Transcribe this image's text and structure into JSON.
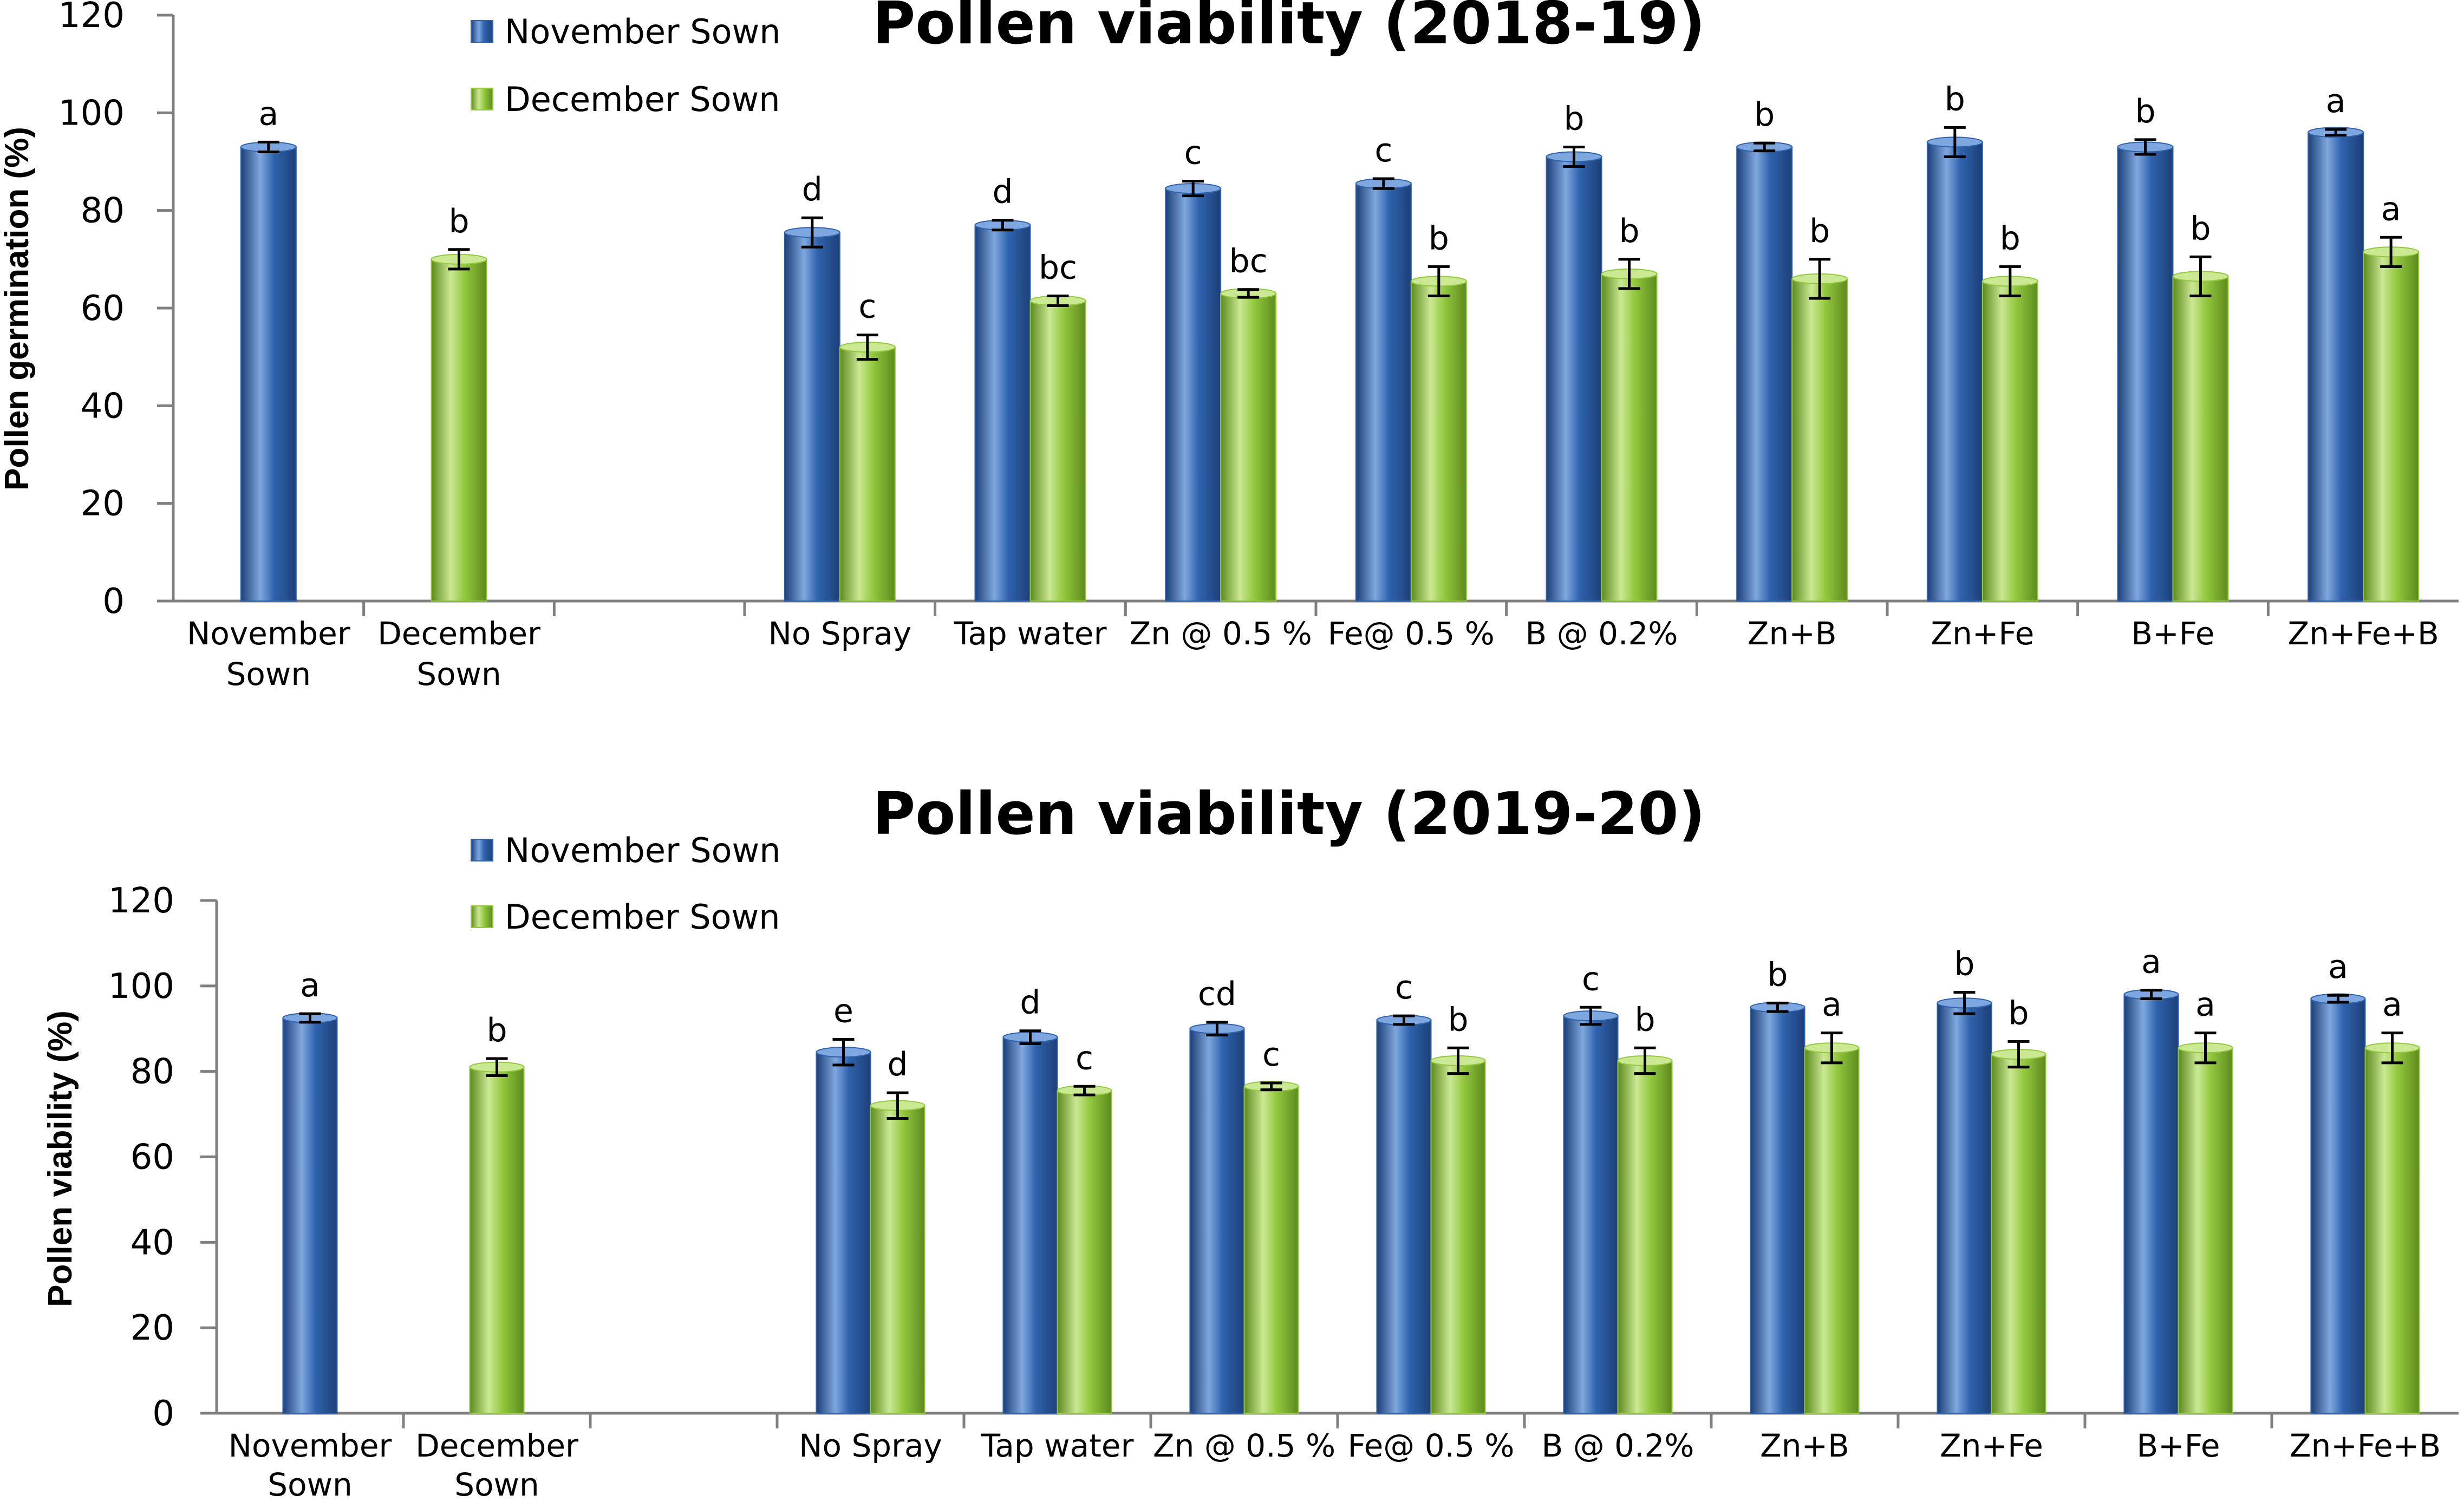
{
  "colors": {
    "november": "#2f63ad",
    "november_light": "#7fa7df",
    "november_dark": "#1d3f78",
    "december": "#93c83e",
    "december_light": "#cbe893",
    "december_dark": "#5d8a1e",
    "axis": "#7f7f7f"
  },
  "chart_data": [
    {
      "type": "bar",
      "title": "Pollen viability (2018-19)",
      "ylabel": "Pollen  germination (%)",
      "xlabel": "",
      "ylim": [
        0,
        120
      ],
      "yticks": [
        0,
        20,
        40,
        60,
        80,
        100,
        120
      ],
      "categories": [
        [
          "November",
          "Sown"
        ],
        [
          "December",
          "Sown"
        ],
        [
          ""
        ],
        [
          "No Spray"
        ],
        [
          "Tap water"
        ],
        [
          "Zn @ 0.5 %"
        ],
        [
          "Fe@ 0.5 %"
        ],
        [
          "B @ 0.2%"
        ],
        [
          "Zn+B"
        ],
        [
          "Zn+Fe"
        ],
        [
          "B+Fe"
        ],
        [
          "Zn+Fe+B"
        ]
      ],
      "series": [
        {
          "name": "November Sown",
          "values": [
            93,
            null,
            null,
            75.5,
            77,
            84.5,
            85.5,
            91,
            93,
            94,
            93,
            96
          ],
          "errors": [
            1,
            null,
            null,
            3,
            1,
            1.5,
            1,
            2,
            0.8,
            3,
            1.5,
            0.6
          ],
          "labels": [
            "a",
            "",
            "",
            "d",
            "d",
            "c",
            "c",
            "b",
            "b",
            "b",
            "b",
            "a"
          ]
        },
        {
          "name": "December Sown",
          "values": [
            null,
            70,
            null,
            52,
            61.5,
            63,
            65.5,
            67,
            66,
            65.5,
            66.5,
            71.5
          ],
          "errors": [
            null,
            2,
            null,
            2.5,
            1,
            0.8,
            3,
            3,
            4,
            3,
            4,
            3
          ],
          "labels": [
            "",
            "b",
            "",
            "c",
            "bc",
            "bc",
            "b",
            "b",
            "b",
            "b",
            "b",
            "a"
          ]
        }
      ],
      "legend": [
        "November Sown",
        "December Sown"
      ],
      "legend_position": "top-left"
    },
    {
      "type": "bar",
      "title": "Pollen viability (2019-20)",
      "ylabel": "Pollen viability (%)",
      "xlabel": "",
      "ylim": [
        0,
        120
      ],
      "yticks": [
        0,
        20,
        40,
        60,
        80,
        100,
        120
      ],
      "categories": [
        [
          "November",
          "Sown"
        ],
        [
          "December",
          "Sown"
        ],
        [
          ""
        ],
        [
          "No Spray"
        ],
        [
          "Tap water"
        ],
        [
          "Zn @ 0.5 %"
        ],
        [
          "Fe@ 0.5 %"
        ],
        [
          "B @ 0.2%"
        ],
        [
          "Zn+B"
        ],
        [
          "Zn+Fe"
        ],
        [
          "B+Fe"
        ],
        [
          "Zn+Fe+B"
        ]
      ],
      "series": [
        {
          "name": "November Sown",
          "values": [
            92.5,
            null,
            null,
            84.5,
            88,
            90,
            92,
            93,
            95,
            96,
            98,
            97
          ],
          "errors": [
            1,
            null,
            null,
            3,
            1.5,
            1.5,
            1,
            2,
            1,
            2.5,
            1,
            0.8
          ],
          "labels": [
            "a",
            "",
            "",
            "e",
            "d",
            "cd",
            "c",
            "c",
            "b",
            "b",
            "a",
            "a"
          ]
        },
        {
          "name": "December Sown",
          "values": [
            null,
            81,
            null,
            72,
            75.5,
            76.5,
            82.5,
            82.5,
            85.5,
            84,
            85.5,
            85.5
          ],
          "errors": [
            null,
            2,
            null,
            3,
            1,
            0.8,
            3,
            3,
            3.5,
            3,
            3.5,
            3.5
          ],
          "labels": [
            "",
            "b",
            "",
            "d",
            "c",
            "c",
            "b",
            "b",
            "a",
            "b",
            "a",
            "a"
          ]
        }
      ],
      "legend": [
        "November Sown",
        "December Sown"
      ],
      "legend_position": "top-left"
    }
  ]
}
